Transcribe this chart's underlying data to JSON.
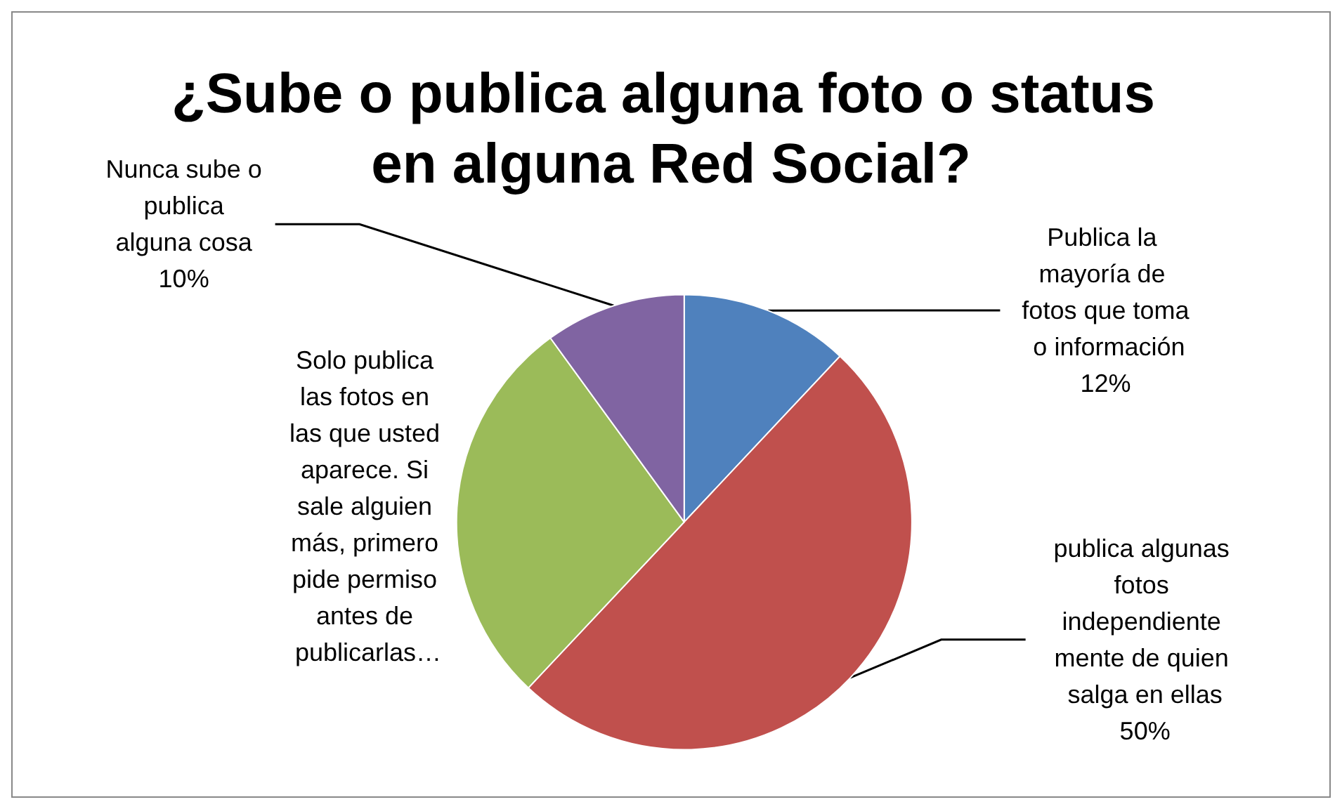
{
  "chart_data": {
    "type": "pie",
    "title": "¿Sube o publica alguna foto o status en alguna Red Social?",
    "categories": [
      "Publica la mayoría de fotos que toma o información",
      "publica algunas fotos independiente mente de quien salga en ellas",
      "Solo publica las fotos en las que usted aparece. Si sale alguien más, primero pide permiso antes de publicarlas…",
      "Nunca sube o publica alguna cosa"
    ],
    "values": [
      12,
      50,
      28,
      10
    ],
    "colors": [
      "#4f81bd",
      "#c0504d",
      "#9bbb59",
      "#8064a2"
    ],
    "value_labels": [
      "12%",
      "50%",
      null,
      "10%"
    ]
  }
}
